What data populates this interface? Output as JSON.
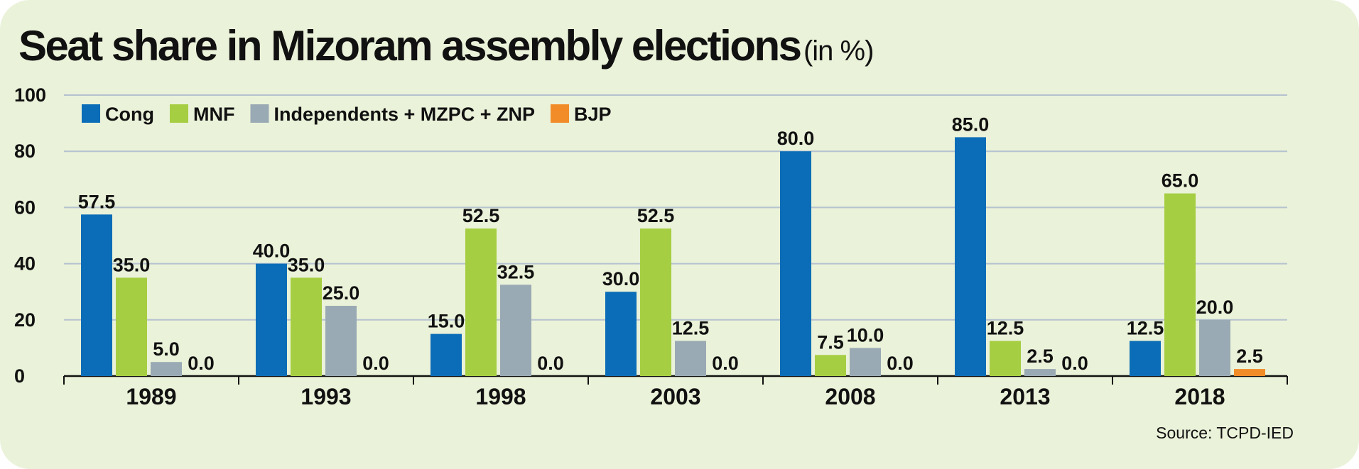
{
  "title": "Seat share in Mizoram assembly elections",
  "title_unit": "(in %)",
  "source": "Source: TCPD-IED",
  "chart_data": {
    "type": "bar",
    "categories": [
      "1989",
      "1993",
      "1998",
      "2003",
      "2008",
      "2013",
      "2018"
    ],
    "series": [
      {
        "name": "Cong",
        "color": "#0b6db7",
        "values": [
          57.5,
          40.0,
          15.0,
          30.0,
          80.0,
          85.0,
          12.5
        ]
      },
      {
        "name": "MNF",
        "color": "#a6ce42",
        "values": [
          35.0,
          35.0,
          52.5,
          52.5,
          7.5,
          12.5,
          65.0
        ]
      },
      {
        "name": "Independents + MZPC + ZNP",
        "color": "#9aaab4",
        "values": [
          5.0,
          25.0,
          32.5,
          12.5,
          10.0,
          2.5,
          20.0
        ]
      },
      {
        "name": "BJP",
        "color": "#f28c28",
        "values": [
          0.0,
          0.0,
          0.0,
          0.0,
          0.0,
          0.0,
          2.5
        ]
      }
    ],
    "ylim": [
      0,
      100
    ],
    "yticks": [
      0,
      20,
      40,
      60,
      80,
      100
    ],
    "grid": true,
    "legend_position": "top-left",
    "data_labels": true,
    "xlabel": "",
    "ylabel": ""
  }
}
